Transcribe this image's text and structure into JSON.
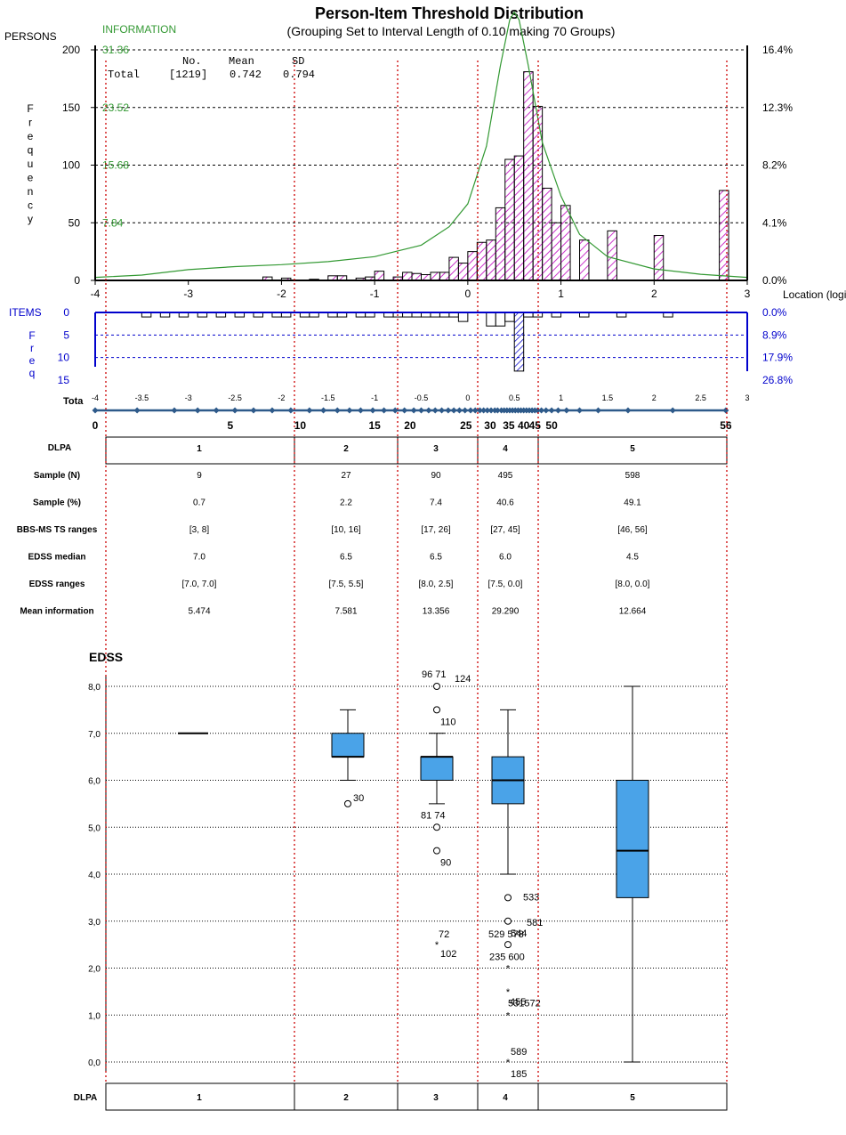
{
  "header": {
    "title": "Person-Item Threshold Distribution",
    "subtitle": "(Grouping Set to Interval Length of  0.10  making  70  Groups)",
    "persons_label": "PERSONS",
    "information_label": "INFORMATION",
    "frequency_label": "Frequency",
    "location_label": "Location (logits)",
    "items_label": "ITEMS",
    "freq_label": "Freq",
    "tota_label": "Tota"
  },
  "summary": {
    "col_no": "No.",
    "col_mean": "Mean",
    "col_sd": "SD",
    "row_label": "Total",
    "no": "[1219]",
    "mean": "0.742",
    "sd": "0.794"
  },
  "colors": {
    "persons_bar": "#cc33cc",
    "items": "#0000cc",
    "information": "#339933",
    "red_line": "#cc0000",
    "box": "#4aa3e8",
    "diamond": "#2e5a8a"
  },
  "chart_data": [
    {
      "type": "bar",
      "name": "persons",
      "x_range": [
        -4,
        3
      ],
      "ylim": [
        0,
        200
      ],
      "y_ticks": [
        0,
        50,
        100,
        150,
        200
      ],
      "x_ticks": [
        -4,
        -3,
        -2,
        -1,
        0,
        1,
        2,
        3
      ],
      "info_ticks": [
        "31.36",
        "23.52",
        "15.68",
        "7.84"
      ],
      "pct_ticks": [
        "16.4%",
        "12.3%",
        "8.2%",
        "4.1%",
        "0.0%"
      ],
      "bar_width": 0.1,
      "bars": [
        {
          "x": -2.15,
          "y": 3
        },
        {
          "x": -1.95,
          "y": 2
        },
        {
          "x": -1.65,
          "y": 1
        },
        {
          "x": -1.45,
          "y": 4
        },
        {
          "x": -1.35,
          "y": 4
        },
        {
          "x": -1.15,
          "y": 2
        },
        {
          "x": -1.05,
          "y": 3
        },
        {
          "x": -0.95,
          "y": 8
        },
        {
          "x": -0.75,
          "y": 3
        },
        {
          "x": -0.65,
          "y": 7
        },
        {
          "x": -0.55,
          "y": 6
        },
        {
          "x": -0.45,
          "y": 5
        },
        {
          "x": -0.35,
          "y": 7
        },
        {
          "x": -0.25,
          "y": 7
        },
        {
          "x": -0.15,
          "y": 20
        },
        {
          "x": -0.05,
          "y": 15
        },
        {
          "x": 0.05,
          "y": 25
        },
        {
          "x": 0.15,
          "y": 33
        },
        {
          "x": 0.25,
          "y": 35
        },
        {
          "x": 0.35,
          "y": 63
        },
        {
          "x": 0.45,
          "y": 105
        },
        {
          "x": 0.55,
          "y": 108
        },
        {
          "x": 0.65,
          "y": 181
        },
        {
          "x": 0.75,
          "y": 151
        },
        {
          "x": 0.85,
          "y": 80
        },
        {
          "x": 0.95,
          "y": 50
        },
        {
          "x": 1.05,
          "y": 65
        },
        {
          "x": 1.25,
          "y": 35
        },
        {
          "x": 1.55,
          "y": 43
        },
        {
          "x": 2.05,
          "y": 39
        },
        {
          "x": 2.75,
          "y": 78
        }
      ],
      "information_curve": {
        "max": 31.36,
        "points": [
          [
            -4,
            0.08
          ],
          [
            -3.5,
            0.14
          ],
          [
            -3,
            0.28
          ],
          [
            -2.5,
            0.36
          ],
          [
            -2,
            0.41
          ],
          [
            -1.5,
            0.49
          ],
          [
            -1,
            0.62
          ],
          [
            -0.5,
            0.92
          ],
          [
            -0.2,
            1.4
          ],
          [
            0,
            2.0
          ],
          [
            0.2,
            3.5
          ],
          [
            0.35,
            5.6
          ],
          [
            0.45,
            6.8
          ],
          [
            0.5,
            7.0
          ],
          [
            0.55,
            6.8
          ],
          [
            0.65,
            5.6
          ],
          [
            0.8,
            3.6
          ],
          [
            1,
            2.2
          ],
          [
            1.2,
            1.2
          ],
          [
            1.5,
            0.62
          ],
          [
            2,
            0.3
          ],
          [
            2.5,
            0.16
          ],
          [
            3,
            0.08
          ]
        ]
      }
    },
    {
      "type": "bar",
      "name": "items",
      "x_range": [
        -4,
        3
      ],
      "ylim": [
        0,
        15
      ],
      "y_ticks": [
        0,
        5,
        10,
        15
      ],
      "pct_ticks": [
        "0.0%",
        "8.9%",
        "17.9%",
        "26.8%"
      ],
      "bar_width": 0.1,
      "bars": [
        {
          "x": -3.45,
          "y": 1
        },
        {
          "x": -3.25,
          "y": 1
        },
        {
          "x": -3.05,
          "y": 1
        },
        {
          "x": -2.85,
          "y": 1
        },
        {
          "x": -2.65,
          "y": 1
        },
        {
          "x": -2.45,
          "y": 1
        },
        {
          "x": -2.25,
          "y": 1
        },
        {
          "x": -2.05,
          "y": 1
        },
        {
          "x": -1.95,
          "y": 1
        },
        {
          "x": -1.75,
          "y": 1
        },
        {
          "x": -1.65,
          "y": 1
        },
        {
          "x": -1.45,
          "y": 1
        },
        {
          "x": -1.35,
          "y": 1
        },
        {
          "x": -1.15,
          "y": 1
        },
        {
          "x": -1.05,
          "y": 1
        },
        {
          "x": -0.85,
          "y": 1
        },
        {
          "x": -0.75,
          "y": 1
        },
        {
          "x": -0.65,
          "y": 1
        },
        {
          "x": -0.55,
          "y": 1
        },
        {
          "x": -0.45,
          "y": 1
        },
        {
          "x": -0.35,
          "y": 1
        },
        {
          "x": -0.25,
          "y": 1
        },
        {
          "x": -0.15,
          "y": 1
        },
        {
          "x": -0.05,
          "y": 2
        },
        {
          "x": 0.25,
          "y": 3
        },
        {
          "x": 0.35,
          "y": 3
        },
        {
          "x": 0.45,
          "y": 2
        },
        {
          "x": 0.55,
          "y": 13
        },
        {
          "x": 0.65,
          "y": 1
        },
        {
          "x": 0.75,
          "y": 1
        },
        {
          "x": 0.95,
          "y": 1
        },
        {
          "x": 1.25,
          "y": 1
        },
        {
          "x": 1.65,
          "y": 1
        },
        {
          "x": 2.15,
          "y": 1
        }
      ]
    },
    {
      "type": "scatter",
      "name": "total-score-axis",
      "x_ticks": [
        "-4",
        "-3.5",
        "-3",
        "-2.5",
        "-2",
        "-1.5",
        "-1",
        "-0.5",
        "0",
        "0.5",
        "1",
        "1.5",
        "2",
        "2.5",
        "3"
      ],
      "score_labels": [
        {
          "label": "0",
          "x": -4.0
        },
        {
          "label": "5",
          "x": -2.55
        },
        {
          "label": "10",
          "x": -1.8
        },
        {
          "label": "15",
          "x": -1.0
        },
        {
          "label": "20",
          "x": -0.62
        },
        {
          "label": "25",
          "x": -0.02
        },
        {
          "label": "30",
          "x": 0.24
        },
        {
          "label": "35",
          "x": 0.44
        },
        {
          "label": "40",
          "x": 0.6
        },
        {
          "label": "45",
          "x": 0.72
        },
        {
          "label": "50",
          "x": 0.9
        },
        {
          "label": "56",
          "x": 2.77
        }
      ],
      "diamonds": [
        -4.0,
        -3.55,
        -3.15,
        -2.9,
        -2.7,
        -2.5,
        -2.3,
        -2.1,
        -1.9,
        -1.7,
        -1.55,
        -1.4,
        -1.27,
        -1.15,
        -1.02,
        -0.9,
        -0.78,
        -0.68,
        -0.58,
        -0.5,
        -0.42,
        -0.35,
        -0.28,
        -0.21,
        -0.15,
        -0.09,
        -0.03,
        0.03,
        0.08,
        0.13,
        0.17,
        0.21,
        0.25,
        0.29,
        0.32,
        0.36,
        0.39,
        0.42,
        0.45,
        0.48,
        0.51,
        0.54,
        0.57,
        0.6,
        0.63,
        0.66,
        0.69,
        0.72,
        0.75,
        0.79,
        0.84,
        0.9,
        0.97,
        1.06,
        1.2,
        1.4,
        1.72,
        2.2,
        2.77
      ]
    },
    {
      "type": "table",
      "name": "dlpa-table",
      "columns": [
        "1",
        "2",
        "3",
        "4",
        "5"
      ],
      "header": "DLPA",
      "rows": [
        {
          "label": "Sample (N)",
          "values": [
            "9",
            "27",
            "90",
            "495",
            "598"
          ]
        },
        {
          "label": "Sample (%)",
          "values": [
            "0.7",
            "2.2",
            "7.4",
            "40.6",
            "49.1"
          ]
        },
        {
          "label": "BBS-MS  TS ranges",
          "values": [
            "[3, 8]",
            "[10, 16]",
            "[17, 26]",
            "[27, 45]",
            "[46, 56]"
          ]
        },
        {
          "label": "EDSS median",
          "values": [
            "7.0",
            "6.5",
            "6.5",
            "6.0",
            "4.5"
          ]
        },
        {
          "label": "EDSS ranges",
          "values": [
            "[7.0, 7.0]",
            "[7.5, 5.5]",
            "[8.0, 2.5]",
            "[7.5, 0.0]",
            "[8.0, 0.0]"
          ]
        },
        {
          "label": "Mean information",
          "values": [
            "5.474",
            "7.581",
            "13.356",
            "29.290",
            "12.664"
          ]
        }
      ]
    },
    {
      "type": "scatter",
      "name": "edss-boxplot",
      "ylabel": "EDSS",
      "xlabel": "DLPA",
      "ylim": [
        0,
        8
      ],
      "y_ticks": [
        "0,0",
        "1,0",
        "2,0",
        "3,0",
        "4,0",
        "5,0",
        "6,0",
        "7,0",
        "8,0"
      ],
      "categories": [
        "1",
        "2",
        "3",
        "4",
        "5"
      ],
      "boxes": [
        {
          "group": "1",
          "min": 7.0,
          "q1": 7.0,
          "median": 7.0,
          "q3": 7.0,
          "max": 7.0
        },
        {
          "group": "2",
          "min": 6.0,
          "q1": 6.5,
          "median": 6.5,
          "q3": 7.0,
          "max": 7.5
        },
        {
          "group": "3",
          "min": 5.5,
          "q1": 6.0,
          "median": 6.5,
          "q3": 6.5,
          "max": 7.0
        },
        {
          "group": "4",
          "min": 4.0,
          "q1": 5.5,
          "median": 6.0,
          "q3": 6.5,
          "max": 7.5
        },
        {
          "group": "5",
          "min": 0.0,
          "q1": 3.5,
          "median": 4.5,
          "q3": 6.0,
          "max": 8.0
        }
      ],
      "outliers": [
        {
          "group": "2",
          "y": 5.5,
          "marker": "circle",
          "label": "30"
        },
        {
          "group": "3",
          "y": 8.0,
          "marker": "circle",
          "label": "96  71"
        },
        {
          "group": "3",
          "y": 8.0,
          "marker": "none",
          "label": "124"
        },
        {
          "group": "3",
          "y": 7.5,
          "marker": "circle",
          "label": "110"
        },
        {
          "group": "3",
          "y": 5.0,
          "marker": "circle",
          "label": "81  74"
        },
        {
          "group": "3",
          "y": 4.5,
          "marker": "circle",
          "label": "90"
        },
        {
          "group": "3",
          "y": 2.5,
          "marker": "star",
          "label": "72"
        },
        {
          "group": "3",
          "y": 2.5,
          "marker": "none",
          "label": "102"
        },
        {
          "group": "4",
          "y": 3.5,
          "marker": "circle",
          "label": "533"
        },
        {
          "group": "4",
          "y": 3.0,
          "marker": "circle",
          "label": "529  578"
        },
        {
          "group": "4",
          "y": 3.0,
          "marker": "none",
          "label": "581"
        },
        {
          "group": "4",
          "y": 2.5,
          "marker": "circle",
          "label": "544"
        },
        {
          "group": "4",
          "y": 2.0,
          "marker": "star",
          "label": "235  600"
        },
        {
          "group": "4",
          "y": 1.5,
          "marker": "star",
          "label": "455"
        },
        {
          "group": "4",
          "y": 1.0,
          "marker": "star",
          "label": "531572"
        },
        {
          "group": "4",
          "y": 0.0,
          "marker": "star",
          "label": "589"
        },
        {
          "group": "4",
          "y": 0.0,
          "marker": "none",
          "label": "185"
        }
      ]
    }
  ]
}
